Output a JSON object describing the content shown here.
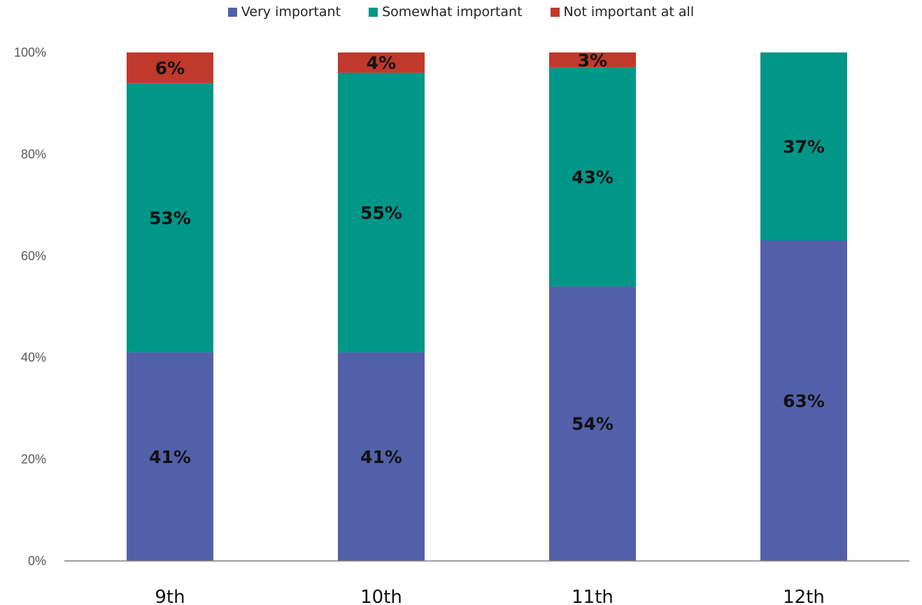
{
  "chart_data": {
    "type": "bar",
    "stacked": true,
    "title": "",
    "xlabel": "",
    "ylabel": "",
    "categories": [
      "9th",
      "10th",
      "11th",
      "12th"
    ],
    "series": [
      {
        "name": "Very important",
        "color": "#5360AA",
        "values": [
          41,
          41,
          54,
          63
        ]
      },
      {
        "name": "Somewhat important",
        "color": "#009688",
        "values": [
          53,
          55,
          43,
          37
        ]
      },
      {
        "name": "Not important at all",
        "color": "#C0392B",
        "values": [
          6,
          4,
          3,
          0
        ]
      }
    ],
    "value_labels": [
      [
        "41%",
        "41%",
        "54%",
        "63%"
      ],
      [
        "53%",
        "55%",
        "43%",
        "37%"
      ],
      [
        "6%",
        "4%",
        "3%",
        ""
      ]
    ],
    "yticks": [
      0,
      20,
      40,
      60,
      80,
      100
    ],
    "ytick_labels": [
      "0%",
      "20%",
      "40%",
      "60%",
      "80%",
      "100%"
    ],
    "ylim": [
      0,
      100
    ],
    "grid": false,
    "legend_position": "top"
  }
}
